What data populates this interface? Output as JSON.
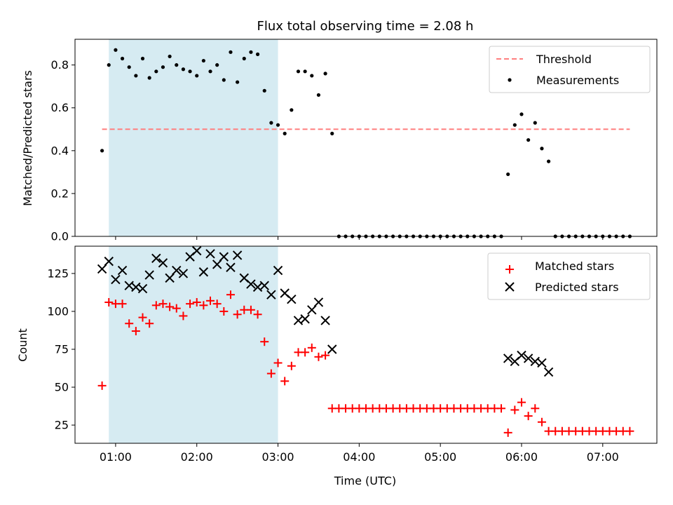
{
  "chart_data": [
    {
      "type": "scatter",
      "title": "Flux total observing time = 2.08 h",
      "xlabel": "",
      "ylabel": "Matched/Predicted stars",
      "ylim": [
        0,
        0.92
      ],
      "yticks": [
        "0.0",
        "0.2",
        "0.4",
        "0.6",
        "0.8"
      ],
      "shaded_span": [
        "00:55",
        "03:00"
      ],
      "legend_position": "top-right",
      "series": [
        {
          "name": "Threshold",
          "style": "dashed-line",
          "color": "#ff7f7f",
          "points": [
            [
              "00:50",
              0.5
            ],
            [
              "07:20",
              0.5
            ]
          ]
        },
        {
          "name": "Measurements",
          "style": "dot",
          "color": "#000000",
          "points": [
            [
              "00:50",
              0.4
            ],
            [
              "00:55",
              0.8
            ],
            [
              "01:00",
              0.87
            ],
            [
              "01:05",
              0.83
            ],
            [
              "01:10",
              0.79
            ],
            [
              "01:15",
              0.75
            ],
            [
              "01:20",
              0.83
            ],
            [
              "01:25",
              0.74
            ],
            [
              "01:30",
              0.77
            ],
            [
              "01:35",
              0.79
            ],
            [
              "01:40",
              0.84
            ],
            [
              "01:45",
              0.8
            ],
            [
              "01:50",
              0.78
            ],
            [
              "01:55",
              0.77
            ],
            [
              "02:00",
              0.75
            ],
            [
              "02:05",
              0.82
            ],
            [
              "02:10",
              0.77
            ],
            [
              "02:15",
              0.8
            ],
            [
              "02:20",
              0.73
            ],
            [
              "02:25",
              0.86
            ],
            [
              "02:30",
              0.72
            ],
            [
              "02:35",
              0.83
            ],
            [
              "02:40",
              0.86
            ],
            [
              "02:45",
              0.85
            ],
            [
              "02:50",
              0.68
            ],
            [
              "02:55",
              0.53
            ],
            [
              "03:00",
              0.52
            ],
            [
              "03:05",
              0.48
            ],
            [
              "03:10",
              0.59
            ],
            [
              "03:15",
              0.77
            ],
            [
              "03:20",
              0.77
            ],
            [
              "03:25",
              0.75
            ],
            [
              "03:30",
              0.66
            ],
            [
              "03:35",
              0.76
            ],
            [
              "03:40",
              0.48
            ],
            [
              "03:45",
              0.0
            ],
            [
              "03:50",
              0.0
            ],
            [
              "03:55",
              0.0
            ],
            [
              "04:00",
              0.0
            ],
            [
              "04:05",
              0.0
            ],
            [
              "04:10",
              0.0
            ],
            [
              "04:15",
              0.0
            ],
            [
              "04:20",
              0.0
            ],
            [
              "04:25",
              0.0
            ],
            [
              "04:30",
              0.0
            ],
            [
              "04:35",
              0.0
            ],
            [
              "04:40",
              0.0
            ],
            [
              "04:45",
              0.0
            ],
            [
              "04:50",
              0.0
            ],
            [
              "04:55",
              0.0
            ],
            [
              "05:00",
              0.0
            ],
            [
              "05:05",
              0.0
            ],
            [
              "05:10",
              0.0
            ],
            [
              "05:15",
              0.0
            ],
            [
              "05:20",
              0.0
            ],
            [
              "05:25",
              0.0
            ],
            [
              "05:30",
              0.0
            ],
            [
              "05:35",
              0.0
            ],
            [
              "05:40",
              0.0
            ],
            [
              "05:45",
              0.0
            ],
            [
              "05:50",
              0.29
            ],
            [
              "05:55",
              0.52
            ],
            [
              "06:00",
              0.57
            ],
            [
              "06:05",
              0.45
            ],
            [
              "06:10",
              0.53
            ],
            [
              "06:15",
              0.41
            ],
            [
              "06:20",
              0.35
            ],
            [
              "06:25",
              0.0
            ],
            [
              "06:30",
              0.0
            ],
            [
              "06:35",
              0.0
            ],
            [
              "06:40",
              0.0
            ],
            [
              "06:45",
              0.0
            ],
            [
              "06:50",
              0.0
            ],
            [
              "06:55",
              0.0
            ],
            [
              "07:00",
              0.0
            ],
            [
              "07:05",
              0.0
            ],
            [
              "07:10",
              0.0
            ],
            [
              "07:15",
              0.0
            ],
            [
              "07:20",
              0.0
            ]
          ]
        }
      ]
    },
    {
      "type": "scatter",
      "title": "",
      "xlabel": "Time (UTC)",
      "ylabel": "Count",
      "ylim": [
        13,
        143
      ],
      "yticks": [
        "25",
        "50",
        "75",
        "100",
        "125"
      ],
      "xlim": [
        "00:30",
        "07:40"
      ],
      "xticks": [
        "01:00",
        "02:00",
        "03:00",
        "04:00",
        "05:00",
        "06:00",
        "07:00"
      ],
      "shaded_span": [
        "00:55",
        "03:00"
      ],
      "legend_position": "top-right",
      "series": [
        {
          "name": "Matched stars",
          "marker": "plus",
          "color": "#ff0000",
          "points": [
            [
              "00:50",
              51
            ],
            [
              "00:55",
              106
            ],
            [
              "01:00",
              105
            ],
            [
              "01:05",
              105
            ],
            [
              "01:10",
              92
            ],
            [
              "01:15",
              87
            ],
            [
              "01:20",
              96
            ],
            [
              "01:25",
              92
            ],
            [
              "01:30",
              104
            ],
            [
              "01:35",
              105
            ],
            [
              "01:40",
              103
            ],
            [
              "01:45",
              102
            ],
            [
              "01:50",
              97
            ],
            [
              "01:55",
              105
            ],
            [
              "02:00",
              106
            ],
            [
              "02:05",
              104
            ],
            [
              "02:10",
              107
            ],
            [
              "02:15",
              105
            ],
            [
              "02:20",
              100
            ],
            [
              "02:25",
              111
            ],
            [
              "02:30",
              98
            ],
            [
              "02:35",
              101
            ],
            [
              "02:40",
              101
            ],
            [
              "02:45",
              98
            ],
            [
              "02:50",
              80
            ],
            [
              "02:55",
              59
            ],
            [
              "03:00",
              66
            ],
            [
              "03:05",
              54
            ],
            [
              "03:10",
              64
            ],
            [
              "03:15",
              73
            ],
            [
              "03:20",
              73
            ],
            [
              "03:25",
              76
            ],
            [
              "03:30",
              70
            ],
            [
              "03:35",
              71
            ],
            [
              "03:40",
              36
            ],
            [
              "03:45",
              36
            ],
            [
              "03:50",
              36
            ],
            [
              "03:55",
              36
            ],
            [
              "04:00",
              36
            ],
            [
              "04:05",
              36
            ],
            [
              "04:10",
              36
            ],
            [
              "04:15",
              36
            ],
            [
              "04:20",
              36
            ],
            [
              "04:25",
              36
            ],
            [
              "04:30",
              36
            ],
            [
              "04:35",
              36
            ],
            [
              "04:40",
              36
            ],
            [
              "04:45",
              36
            ],
            [
              "04:50",
              36
            ],
            [
              "04:55",
              36
            ],
            [
              "05:00",
              36
            ],
            [
              "05:05",
              36
            ],
            [
              "05:10",
              36
            ],
            [
              "05:15",
              36
            ],
            [
              "05:20",
              36
            ],
            [
              "05:25",
              36
            ],
            [
              "05:30",
              36
            ],
            [
              "05:35",
              36
            ],
            [
              "05:40",
              36
            ],
            [
              "05:45",
              36
            ],
            [
              "05:50",
              20
            ],
            [
              "05:55",
              35
            ],
            [
              "06:00",
              40
            ],
            [
              "06:05",
              31
            ],
            [
              "06:10",
              36
            ],
            [
              "06:15",
              27
            ],
            [
              "06:20",
              21
            ],
            [
              "06:25",
              21
            ],
            [
              "06:30",
              21
            ],
            [
              "06:35",
              21
            ],
            [
              "06:40",
              21
            ],
            [
              "06:45",
              21
            ],
            [
              "06:50",
              21
            ],
            [
              "06:55",
              21
            ],
            [
              "07:00",
              21
            ],
            [
              "07:05",
              21
            ],
            [
              "07:10",
              21
            ],
            [
              "07:15",
              21
            ],
            [
              "07:20",
              21
            ]
          ]
        },
        {
          "name": "Predicted stars",
          "marker": "x",
          "color": "#000000",
          "points": [
            [
              "00:50",
              128
            ],
            [
              "00:55",
              133
            ],
            [
              "01:00",
              121
            ],
            [
              "01:05",
              127
            ],
            [
              "01:10",
              117
            ],
            [
              "01:15",
              116
            ],
            [
              "01:20",
              115
            ],
            [
              "01:25",
              124
            ],
            [
              "01:30",
              135
            ],
            [
              "01:35",
              132
            ],
            [
              "01:40",
              122
            ],
            [
              "01:45",
              127
            ],
            [
              "01:50",
              125
            ],
            [
              "01:55",
              136
            ],
            [
              "02:00",
              140
            ],
            [
              "02:05",
              126
            ],
            [
              "02:10",
              138
            ],
            [
              "02:15",
              131
            ],
            [
              "02:20",
              136
            ],
            [
              "02:25",
              129
            ],
            [
              "02:30",
              137
            ],
            [
              "02:35",
              122
            ],
            [
              "02:40",
              118
            ],
            [
              "02:45",
              116
            ],
            [
              "02:50",
              117
            ],
            [
              "02:55",
              111
            ],
            [
              "03:00",
              127
            ],
            [
              "03:05",
              112
            ],
            [
              "03:10",
              108
            ],
            [
              "03:15",
              94
            ],
            [
              "03:20",
              95
            ],
            [
              "03:25",
              101
            ],
            [
              "03:30",
              106
            ],
            [
              "03:35",
              94
            ],
            [
              "03:40",
              75
            ],
            [
              "05:50",
              69
            ],
            [
              "05:55",
              67
            ],
            [
              "06:00",
              71
            ],
            [
              "06:05",
              69
            ],
            [
              "06:10",
              67
            ],
            [
              "06:15",
              66
            ],
            [
              "06:20",
              60
            ]
          ]
        }
      ]
    }
  ]
}
